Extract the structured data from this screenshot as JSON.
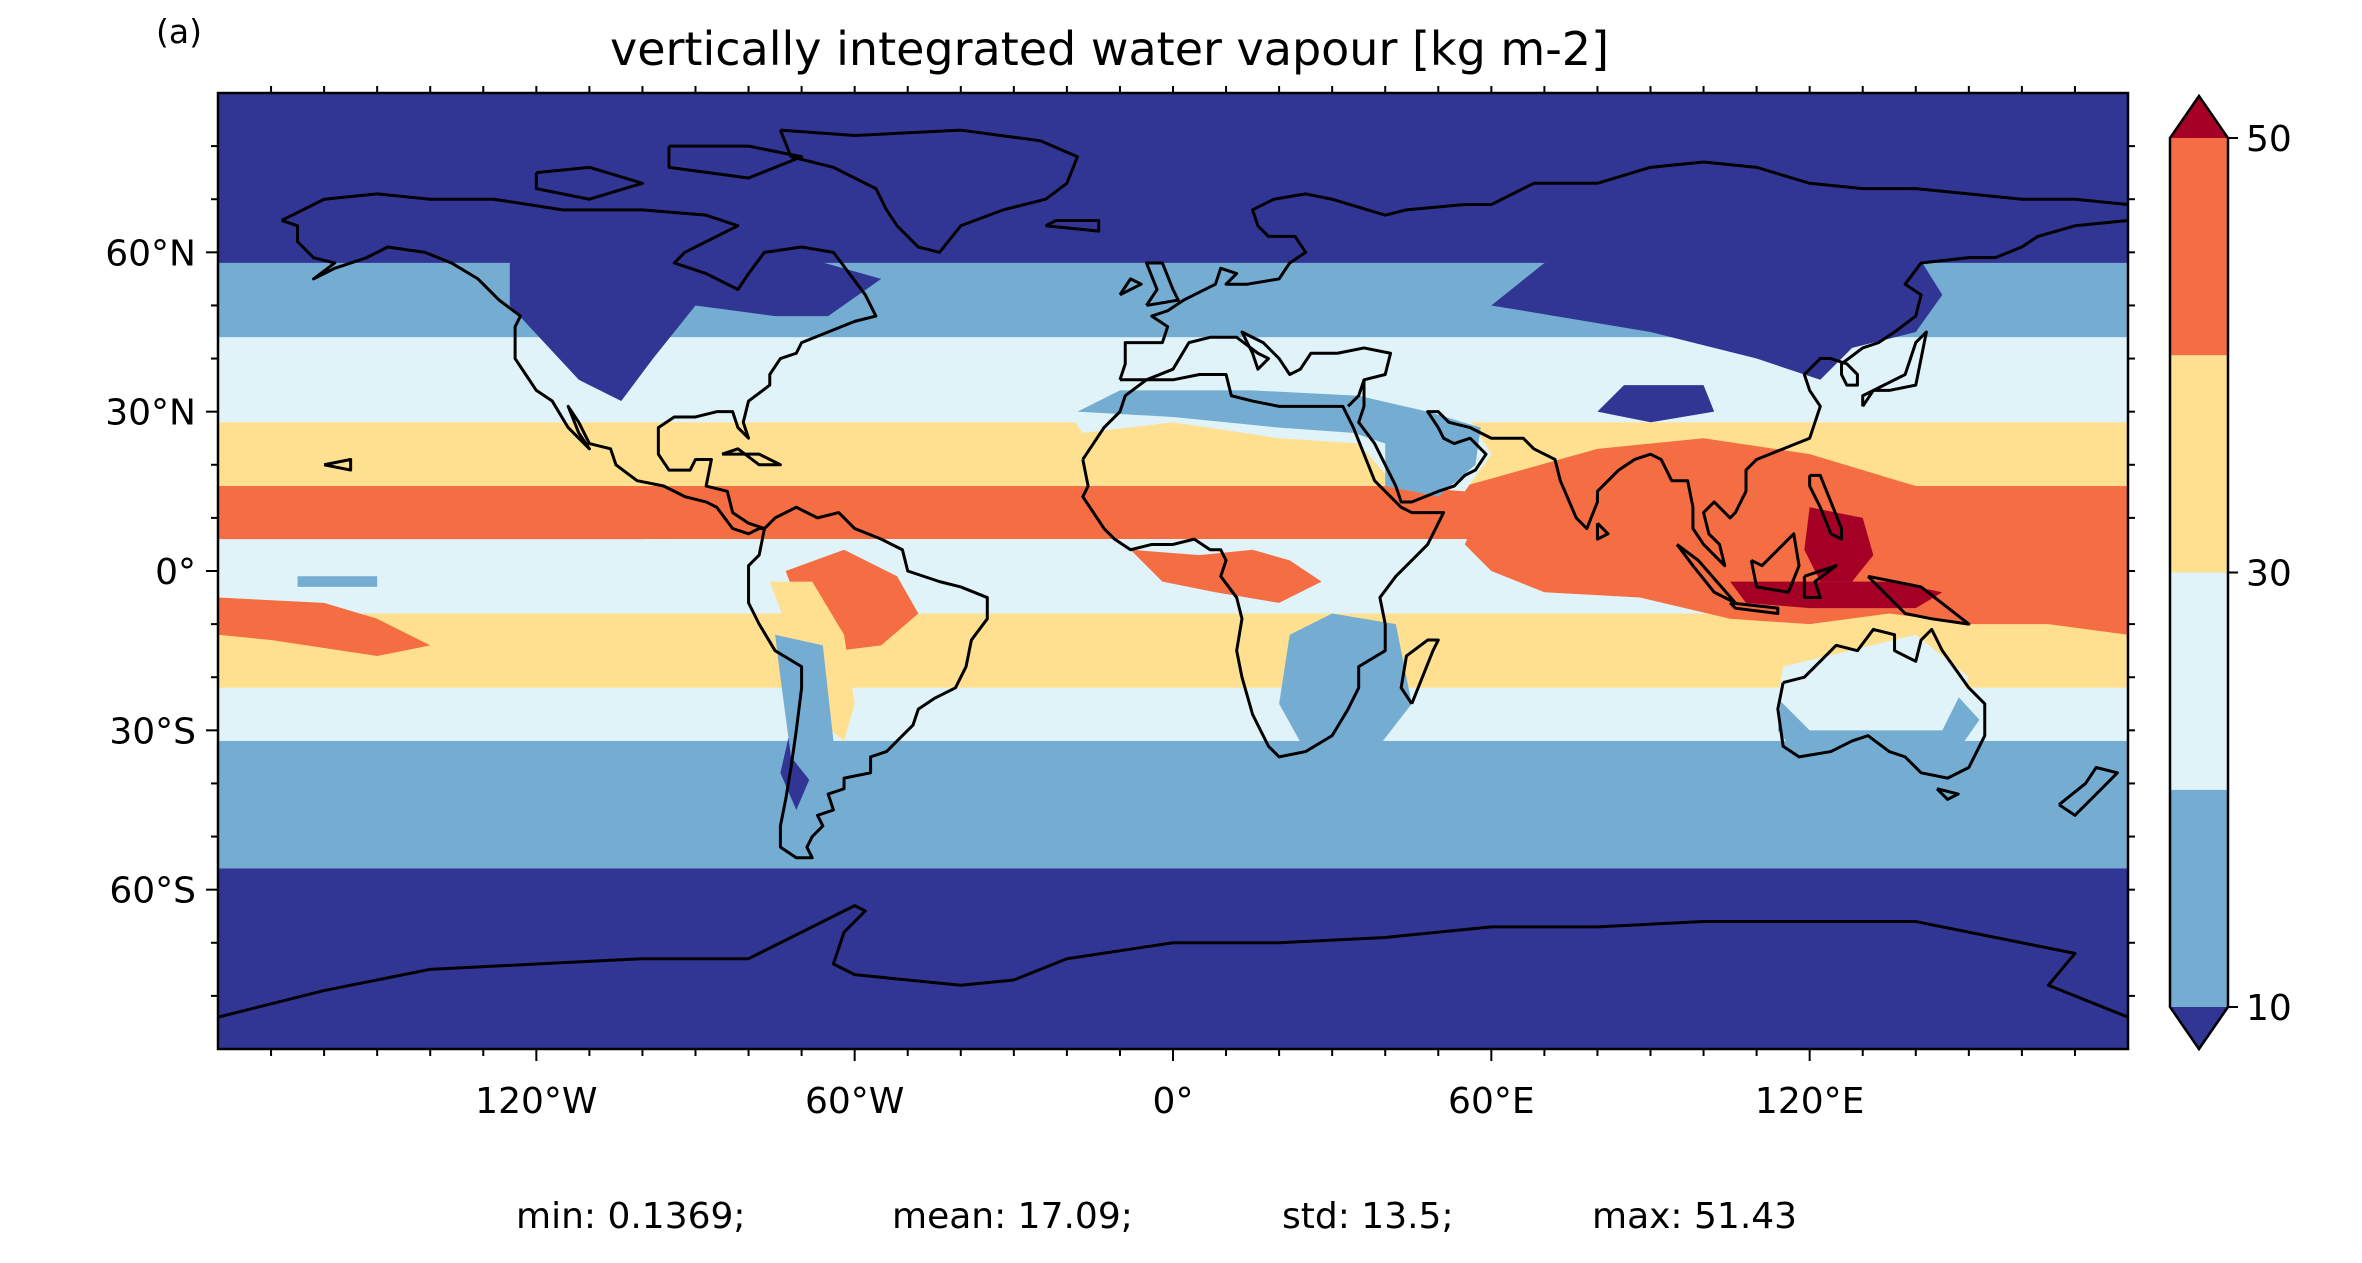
{
  "panel_label": "(a)",
  "title": "vertically integrated water vapour [kg m-2]",
  "stats": {
    "min": "min: 0.1369;",
    "mean": "mean: 17.09;",
    "std": "std: 13.5;",
    "max": "max: 51.43"
  },
  "chart_data": {
    "type": "heatmap",
    "title": "vertically integrated water vapour [kg m-2]",
    "projection": "PlateCarree global map",
    "xlim": [
      -180,
      180
    ],
    "ylim": [
      -90,
      90
    ],
    "x_ticks": [
      {
        "value": -120,
        "label": "120°W"
      },
      {
        "value": -60,
        "label": "60°W"
      },
      {
        "value": 0,
        "label": "0°"
      },
      {
        "value": 60,
        "label": "60°E"
      },
      {
        "value": 120,
        "label": "120°E"
      }
    ],
    "y_ticks": [
      {
        "value": 60,
        "label": "60°N"
      },
      {
        "value": 30,
        "label": "30°N"
      },
      {
        "value": 0,
        "label": "0°"
      },
      {
        "value": -30,
        "label": "30°S"
      },
      {
        "value": -60,
        "label": "60°S"
      }
    ],
    "colorbar": {
      "levels": [
        10,
        20,
        30,
        40,
        50
      ],
      "tick_labels": [
        "10",
        "30",
        "50"
      ],
      "extend": "both",
      "colors": {
        "under": "#313695",
        "10-20": "#74add1",
        "20-30": "#e0f3f8",
        "30-40": "#fee090",
        "40-50": "#f46d43",
        "over": "#a50026"
      }
    },
    "zonal_bands": [
      {
        "lat_from": 90,
        "lat_to": 58,
        "range": "<10"
      },
      {
        "lat_from": 58,
        "lat_to": 44,
        "range": "10-20"
      },
      {
        "lat_from": 44,
        "lat_to": 28,
        "range": "20-30"
      },
      {
        "lat_from": 28,
        "lat_to": 16,
        "range": "30-40"
      },
      {
        "lat_from": 16,
        "lat_to": 6,
        "range": "40-50"
      },
      {
        "lat_from": 6,
        "lat_to": -8,
        "range": "20-30"
      },
      {
        "lat_from": -8,
        "lat_to": -22,
        "range": "30-40"
      },
      {
        "lat_from": -22,
        "lat_to": -32,
        "range": "20-30"
      },
      {
        "lat_from": -32,
        "lat_to": -56,
        "range": "10-20"
      },
      {
        "lat_from": -56,
        "lat_to": -90,
        "range": "<10"
      }
    ],
    "summary": {
      "min": 0.1369,
      "mean": 17.09,
      "std": 13.5,
      "max": 51.43
    }
  }
}
